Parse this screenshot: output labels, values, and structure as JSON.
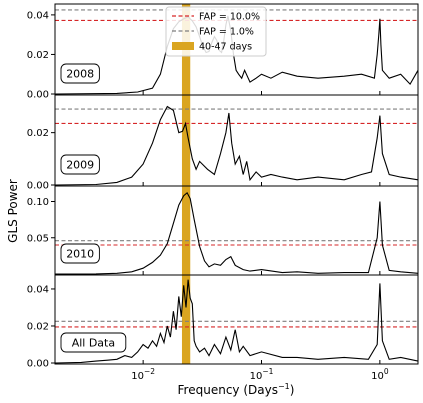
{
  "chart_data": {
    "type": "line",
    "xlabel_base": "Frequency (Days",
    "xlabel_exp": "−1",
    "xlabel_close": ")",
    "ylabel": "GLS Power",
    "xscale": "log",
    "xlim": [
      0.0018,
      2.1
    ],
    "xticks": [
      {
        "value": 0.01,
        "base": "10",
        "exp": "−2"
      },
      {
        "value": 0.1,
        "base": "10",
        "exp": "−1"
      },
      {
        "value": 1,
        "base": "10",
        "exp": "0"
      }
    ],
    "highlight_band": {
      "label": "40-47 days",
      "x0": 0.02128,
      "x1": 0.025,
      "color": "#DAA520"
    },
    "legend": {
      "placement": "top-right, first panel",
      "items": [
        {
          "label": "FAP = 10.0%",
          "style": "dashed",
          "color": "#d62728"
        },
        {
          "label": "FAP =  1.0%",
          "style": "dashed",
          "color": "#7f7f7f"
        },
        {
          "label": "40-47 days",
          "style": "patch",
          "color": "#DAA520"
        }
      ]
    },
    "panels": [
      {
        "tag": "2008",
        "ylim": [
          0,
          0.045
        ],
        "yticks": [
          "0.00",
          "0.02",
          "0.04"
        ],
        "fap10": 0.0372,
        "fap1": 0.0425,
        "x": [
          0.0018,
          0.006,
          0.009,
          0.012,
          0.014,
          0.016,
          0.018,
          0.02,
          0.022,
          0.024,
          0.026,
          0.028,
          0.03,
          0.032,
          0.034,
          0.036,
          0.038,
          0.04,
          0.042,
          0.044,
          0.046,
          0.048,
          0.05,
          0.052,
          0.055,
          0.058,
          0.061,
          0.064,
          0.068,
          0.072,
          0.08,
          0.09,
          0.1,
          0.12,
          0.15,
          0.2,
          0.3,
          0.5,
          0.7,
          0.9,
          0.95,
          0.98,
          1.0,
          1.02,
          1.05,
          1.2,
          1.5,
          1.8,
          2.1
        ],
        "y": [
          0.0,
          0.0003,
          0.001,
          0.003,
          0.01,
          0.024,
          0.033,
          0.0365,
          0.038,
          0.039,
          0.037,
          0.034,
          0.029,
          0.024,
          0.021,
          0.0215,
          0.026,
          0.029,
          0.027,
          0.022,
          0.021,
          0.027,
          0.035,
          0.0395,
          0.032,
          0.02,
          0.012,
          0.01,
          0.008,
          0.012,
          0.006,
          0.008,
          0.01,
          0.008,
          0.011,
          0.009,
          0.008,
          0.009,
          0.01,
          0.008,
          0.02,
          0.03,
          0.038,
          0.025,
          0.012,
          0.008,
          0.01,
          0.005,
          0.012
        ]
      },
      {
        "tag": "2009",
        "ylim": [
          0,
          0.034
        ],
        "yticks": [
          "0.00",
          "0.02"
        ],
        "fap10": 0.0235,
        "fap1": 0.029,
        "x": [
          0.0018,
          0.004,
          0.006,
          0.008,
          0.01,
          0.012,
          0.014,
          0.016,
          0.018,
          0.02,
          0.0215,
          0.0228,
          0.024,
          0.026,
          0.028,
          0.03,
          0.035,
          0.04,
          0.045,
          0.05,
          0.053,
          0.056,
          0.06,
          0.065,
          0.07,
          0.075,
          0.08,
          0.09,
          0.1,
          0.12,
          0.15,
          0.2,
          0.3,
          0.5,
          0.7,
          0.85,
          0.95,
          1.0,
          1.05,
          1.2,
          1.5,
          2.1
        ],
        "y": [
          0.0,
          0.0002,
          0.001,
          0.003,
          0.008,
          0.016,
          0.025,
          0.03,
          0.0285,
          0.02,
          0.0205,
          0.0235,
          0.018,
          0.01,
          0.006,
          0.009,
          0.006,
          0.004,
          0.012,
          0.02,
          0.0275,
          0.016,
          0.008,
          0.011,
          0.004,
          0.009,
          0.002,
          0.005,
          0.003,
          0.004,
          0.003,
          0.002,
          0.003,
          0.002,
          0.004,
          0.005,
          0.018,
          0.0265,
          0.012,
          0.004,
          0.003,
          0.002
        ]
      },
      {
        "tag": "2010",
        "ylim": [
          0,
          0.12
        ],
        "yticks": [
          "0.05",
          "0.10"
        ],
        "fap10": 0.04,
        "fap1": 0.046,
        "x": [
          0.0018,
          0.004,
          0.006,
          0.008,
          0.01,
          0.012,
          0.014,
          0.016,
          0.018,
          0.02,
          0.022,
          0.0235,
          0.025,
          0.027,
          0.03,
          0.033,
          0.036,
          0.04,
          0.045,
          0.05,
          0.055,
          0.06,
          0.07,
          0.08,
          0.1,
          0.15,
          0.2,
          0.3,
          0.5,
          0.8,
          0.95,
          1.0,
          1.05,
          1.2,
          1.5,
          2.1
        ],
        "y": [
          0.0,
          0.0002,
          0.001,
          0.003,
          0.008,
          0.016,
          0.026,
          0.042,
          0.07,
          0.095,
          0.108,
          0.112,
          0.104,
          0.075,
          0.038,
          0.018,
          0.01,
          0.014,
          0.012,
          0.02,
          0.024,
          0.012,
          0.006,
          0.004,
          0.006,
          0.002,
          0.003,
          0.001,
          0.002,
          0.002,
          0.05,
          0.1,
          0.04,
          0.005,
          0.003,
          0.001
        ]
      },
      {
        "tag": "All Data",
        "ylim": [
          0,
          0.047
        ],
        "yticks": [
          "0.00",
          "0.02",
          "0.04"
        ],
        "fap10": 0.0195,
        "fap1": 0.0225,
        "x": [
          0.0018,
          0.003,
          0.004,
          0.005,
          0.006,
          0.007,
          0.008,
          0.009,
          0.01,
          0.011,
          0.012,
          0.013,
          0.014,
          0.015,
          0.016,
          0.017,
          0.018,
          0.019,
          0.02,
          0.021,
          0.022,
          0.023,
          0.024,
          0.025,
          0.026,
          0.027,
          0.028,
          0.03,
          0.033,
          0.036,
          0.04,
          0.045,
          0.05,
          0.055,
          0.06,
          0.065,
          0.07,
          0.08,
          0.1,
          0.15,
          0.2,
          0.3,
          0.5,
          0.8,
          0.95,
          1.0,
          1.05,
          1.2,
          1.5,
          2.1
        ],
        "y": [
          0.0,
          0.0003,
          0.001,
          0.0015,
          0.002,
          0.004,
          0.003,
          0.006,
          0.01,
          0.008,
          0.012,
          0.009,
          0.016,
          0.011,
          0.02,
          0.014,
          0.028,
          0.018,
          0.036,
          0.025,
          0.042,
          0.03,
          0.045,
          0.035,
          0.032,
          0.012,
          0.009,
          0.006,
          0.008,
          0.004,
          0.01,
          0.005,
          0.014,
          0.007,
          0.018,
          0.006,
          0.009,
          0.004,
          0.006,
          0.003,
          0.003,
          0.002,
          0.003,
          0.002,
          0.01,
          0.043,
          0.012,
          0.002,
          0.003,
          0.001
        ]
      }
    ]
  }
}
